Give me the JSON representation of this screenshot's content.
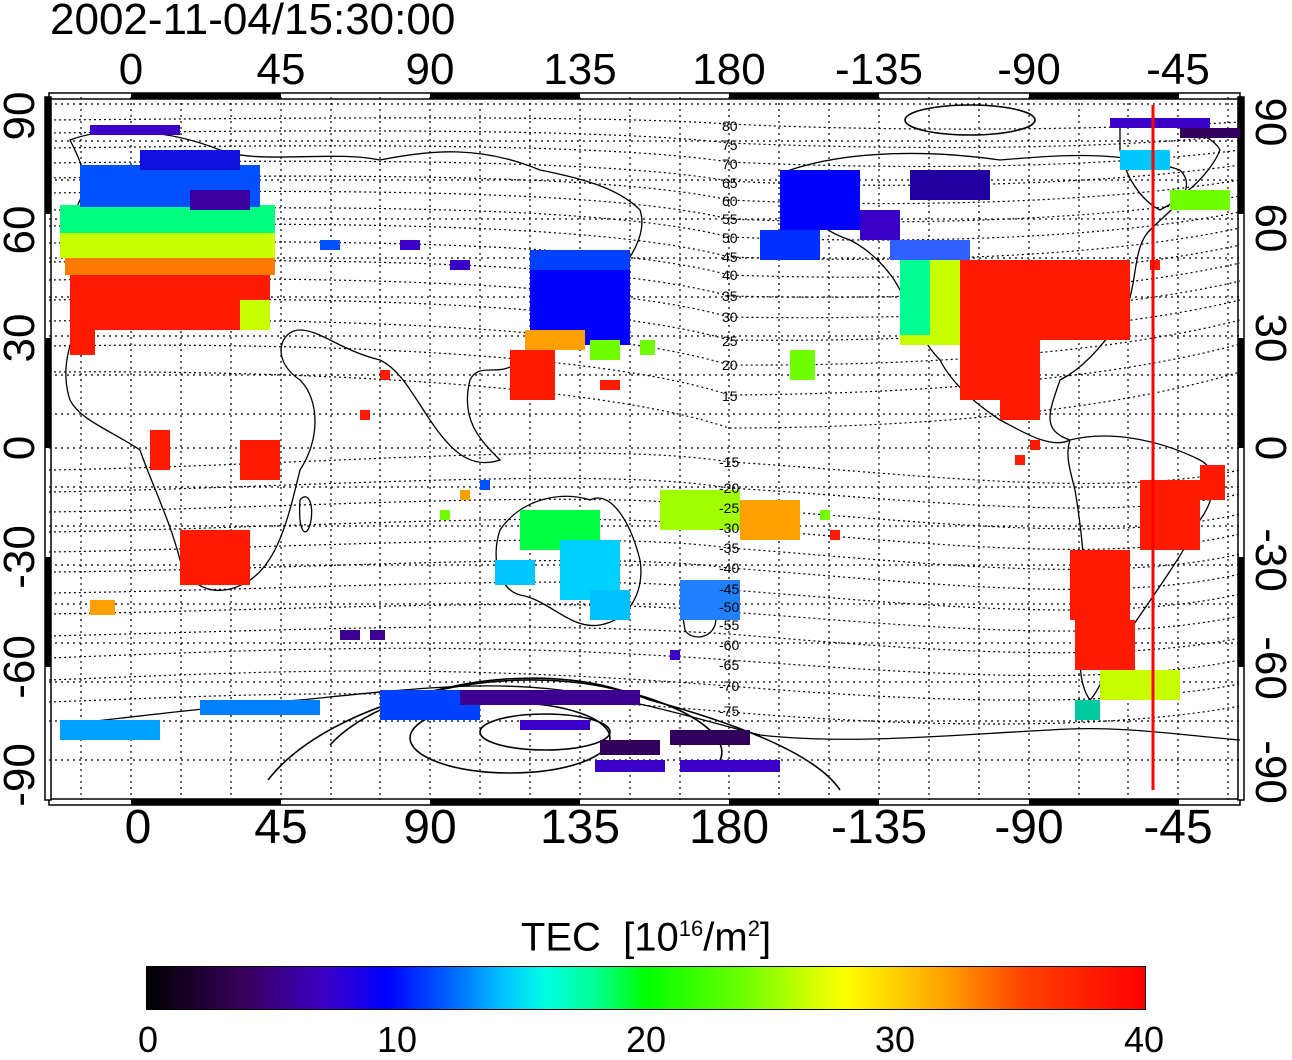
{
  "timestamp": "2002-11-04/15:30:00",
  "lon_ticks_top": [
    "0",
    "45",
    "90",
    "135",
    "180",
    "-135",
    "-90",
    "-45"
  ],
  "lon_ticks_bottom": [
    "0",
    "45",
    "90",
    "135",
    "180",
    "-135",
    "-90",
    "-45"
  ],
  "lat_ticks_left": [
    "90",
    "60",
    "30",
    "0",
    "-30",
    "-60",
    "-90"
  ],
  "lat_ticks_right": [
    "90",
    "60",
    "30",
    "0",
    "-30",
    "-60",
    "-90"
  ],
  "contour_labels": [
    "80",
    "75",
    "70",
    "65",
    "60",
    "55",
    "50",
    "45",
    "40",
    "35",
    "30",
    "25",
    "20",
    "15",
    "-15",
    "-20",
    "-25",
    "-30",
    "-35",
    "-40",
    "-45",
    "-50",
    "-55",
    "-60",
    "-65",
    "-70",
    "-75"
  ],
  "colorbar": {
    "title": "TEC",
    "unit_prefix": "[10",
    "unit_exp": "16",
    "unit_mid": "/m",
    "unit_exp2": "2",
    "unit_suffix": "]",
    "ticks": [
      "0",
      "10",
      "20",
      "30",
      "40"
    ],
    "range": [
      0,
      40
    ]
  },
  "marker_line_color": "#ff0000",
  "map_extent": {
    "lon_start": -25,
    "lon_end": 335,
    "lat_min": -90,
    "lat_max": 90
  }
}
